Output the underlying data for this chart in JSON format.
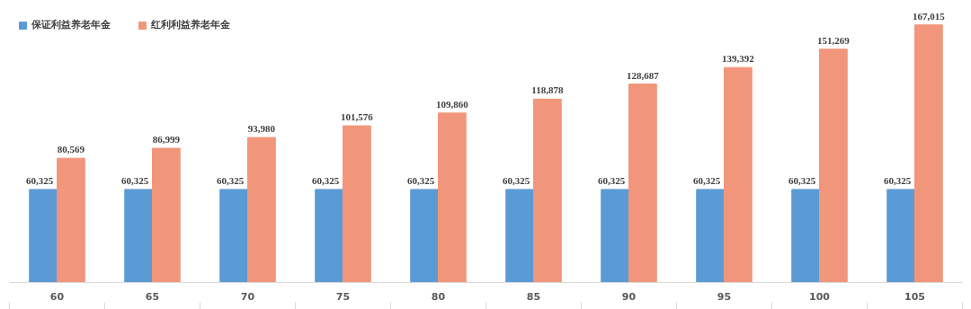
{
  "chart_data": {
    "type": "bar",
    "categories": [
      "60",
      "65",
      "70",
      "75",
      "80",
      "85",
      "90",
      "95",
      "100",
      "105"
    ],
    "series": [
      {
        "name": "保证利益养老年金",
        "color": "#5b9bd5",
        "values": [
          60325,
          60325,
          60325,
          60325,
          60325,
          60325,
          60325,
          60325,
          60325,
          60325
        ],
        "value_labels": [
          "60,325",
          "60,325",
          "60,325",
          "60,325",
          "60,325",
          "60,325",
          "60,325",
          "60,325",
          "60,325",
          "60,325"
        ]
      },
      {
        "name": "红利利益养老年金",
        "color": "#f1967b",
        "values": [
          80569,
          86999,
          93980,
          101576,
          109860,
          118878,
          128687,
          139392,
          151269,
          167015
        ],
        "value_labels": [
          "80,569",
          "86,999",
          "93,980",
          "101,576",
          "109,860",
          "118,878",
          "128,687",
          "139,392",
          "151,269",
          "167,015"
        ]
      }
    ],
    "legend": "top left",
    "grid": false
  }
}
